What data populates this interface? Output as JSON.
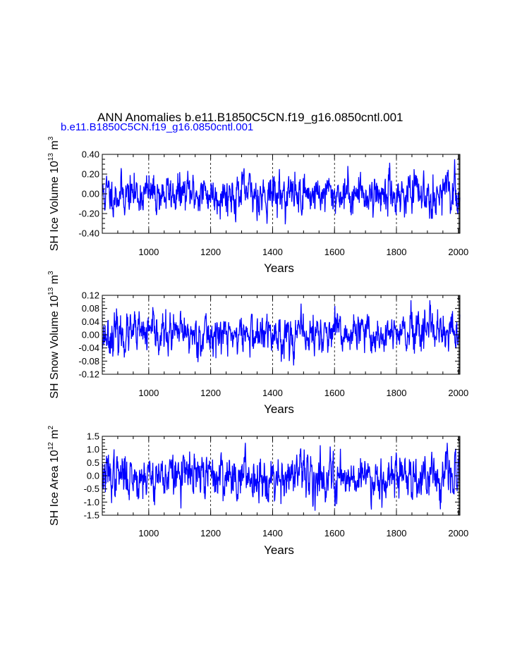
{
  "title": "ANN Anomalies b.e11.B1850C5CN.f19_g16.0850cntl.001",
  "subtitle": "b.e11.B1850C5CN.f19_g16.0850cntl.001",
  "series_color": "#0000ff",
  "chart_data": [
    {
      "type": "line",
      "ylabel": "SH Ice Volume 10",
      "ylabel_exp": "13",
      "ylabel_unit": "m",
      "ylabel_unit_exp": "3",
      "xlabel": "Years",
      "xlim": [
        850,
        2005
      ],
      "ylim": [
        -0.4,
        0.4
      ],
      "xticks": [
        1000,
        1200,
        1400,
        1600,
        1800,
        2000
      ],
      "xtick_labels": [
        "1000",
        "1200",
        "1400",
        "1600",
        "1800",
        "2000"
      ],
      "yticks": [
        -0.4,
        -0.2,
        0.0,
        0.2,
        0.4
      ],
      "ytick_labels": [
        "-0.40",
        "-0.20",
        "0.00",
        "0.20",
        "0.40"
      ],
      "grid_x": [
        1000,
        1200,
        1400,
        1600,
        1800
      ],
      "series": [
        {
          "name": "SH Ice Volume",
          "amplitude": 0.1,
          "min": -0.32,
          "max": 0.35,
          "seed": 11
        }
      ]
    },
    {
      "type": "line",
      "ylabel": "SH Snow Volume 10",
      "ylabel_exp": "13",
      "ylabel_unit": "m",
      "ylabel_unit_exp": "3",
      "xlabel": "Years",
      "xlim": [
        850,
        2005
      ],
      "ylim": [
        -0.12,
        0.12
      ],
      "xticks": [
        1000,
        1200,
        1400,
        1600,
        1800,
        2000
      ],
      "xtick_labels": [
        "1000",
        "1200",
        "1400",
        "1600",
        "1800",
        "2000"
      ],
      "yticks": [
        -0.12,
        -0.08,
        -0.04,
        0.0,
        0.04,
        0.08,
        0.12
      ],
      "ytick_labels": [
        "-0.12",
        "-0.08",
        "-0.04",
        "0.00",
        "0.04",
        "0.08",
        "0.12"
      ],
      "grid_x": [
        1000,
        1200,
        1400,
        1600,
        1800
      ],
      "series": [
        {
          "name": "SH Snow Volume",
          "amplitude": 0.03,
          "min": -0.1,
          "max": 0.105,
          "seed": 23
        }
      ]
    },
    {
      "type": "line",
      "ylabel": "SH Ice Area 10",
      "ylabel_exp": "12",
      "ylabel_unit": "m",
      "ylabel_unit_exp": "2",
      "xlabel": "Years",
      "xlim": [
        850,
        2005
      ],
      "ylim": [
        -1.5,
        1.5
      ],
      "xticks": [
        1000,
        1200,
        1400,
        1600,
        1800,
        2000
      ],
      "xtick_labels": [
        "1000",
        "1200",
        "1400",
        "1600",
        "1800",
        "2000"
      ],
      "yticks": [
        -1.5,
        -1.0,
        -0.5,
        0.0,
        0.5,
        1.0,
        1.5
      ],
      "ytick_labels": [
        "-1.5",
        "-1.0",
        "-0.5",
        "0.0",
        "0.5",
        "1.0",
        "1.5"
      ],
      "grid_x": [
        1000,
        1200,
        1400,
        1600,
        1800
      ],
      "series": [
        {
          "name": "SH Ice Area",
          "amplitude": 0.42,
          "min": -1.4,
          "max": 1.25,
          "seed": 37
        }
      ]
    }
  ]
}
